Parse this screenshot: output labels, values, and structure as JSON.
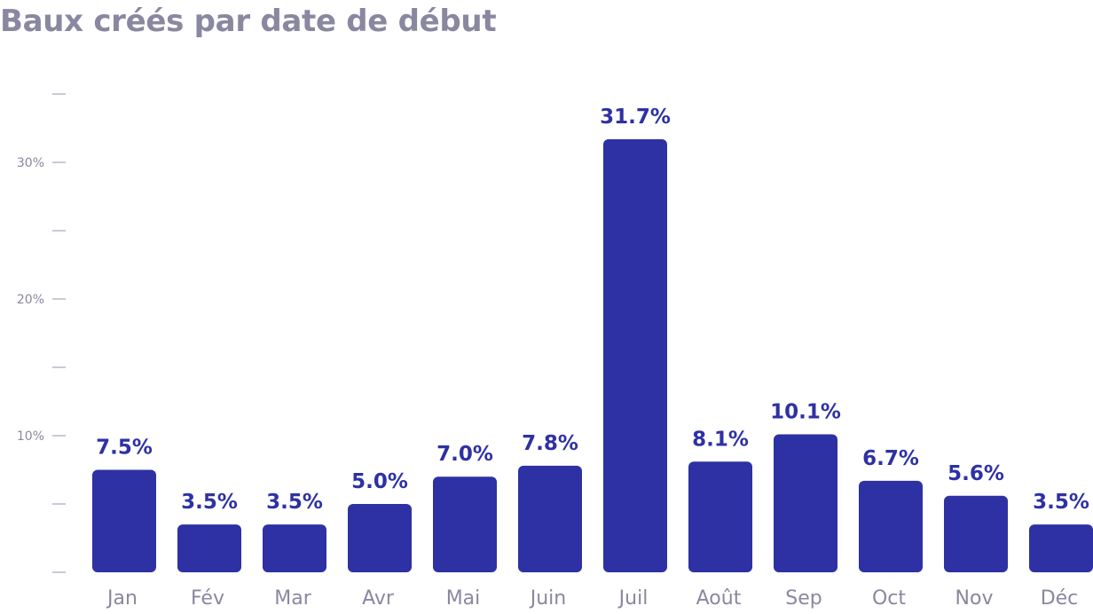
{
  "title": "Baux créés par date de début",
  "colors": {
    "bar": "#2e31a3",
    "value_label": "#2e31a3",
    "axis_text": "#8a87a0",
    "tick": "#b9b7c8"
  },
  "chart_data": {
    "type": "bar",
    "title": "Baux créés par date de début",
    "xlabel": "",
    "ylabel": "",
    "categories": [
      "Jan",
      "Fév",
      "Mar",
      "Avr",
      "Mai",
      "Juin",
      "Juil",
      "Août",
      "Sep",
      "Oct",
      "Nov",
      "Déc"
    ],
    "values": [
      7.5,
      3.5,
      3.5,
      5.0,
      7.0,
      7.8,
      31.7,
      8.1,
      10.1,
      6.7,
      5.6,
      3.5
    ],
    "value_labels": [
      "7.5%",
      "3.5%",
      "3.5%",
      "5.0%",
      "7.0%",
      "7.8%",
      "31.7%",
      "8.1%",
      "10.1%",
      "6.7%",
      "5.6%",
      "3.5%"
    ],
    "ylim": [
      0,
      35
    ],
    "y_ticks": [
      0,
      5,
      10,
      15,
      20,
      25,
      30,
      35
    ],
    "y_tick_labels": [
      "",
      "",
      "10%",
      "",
      "20%",
      "",
      "30%",
      ""
    ],
    "grid": false,
    "legend": "none"
  }
}
